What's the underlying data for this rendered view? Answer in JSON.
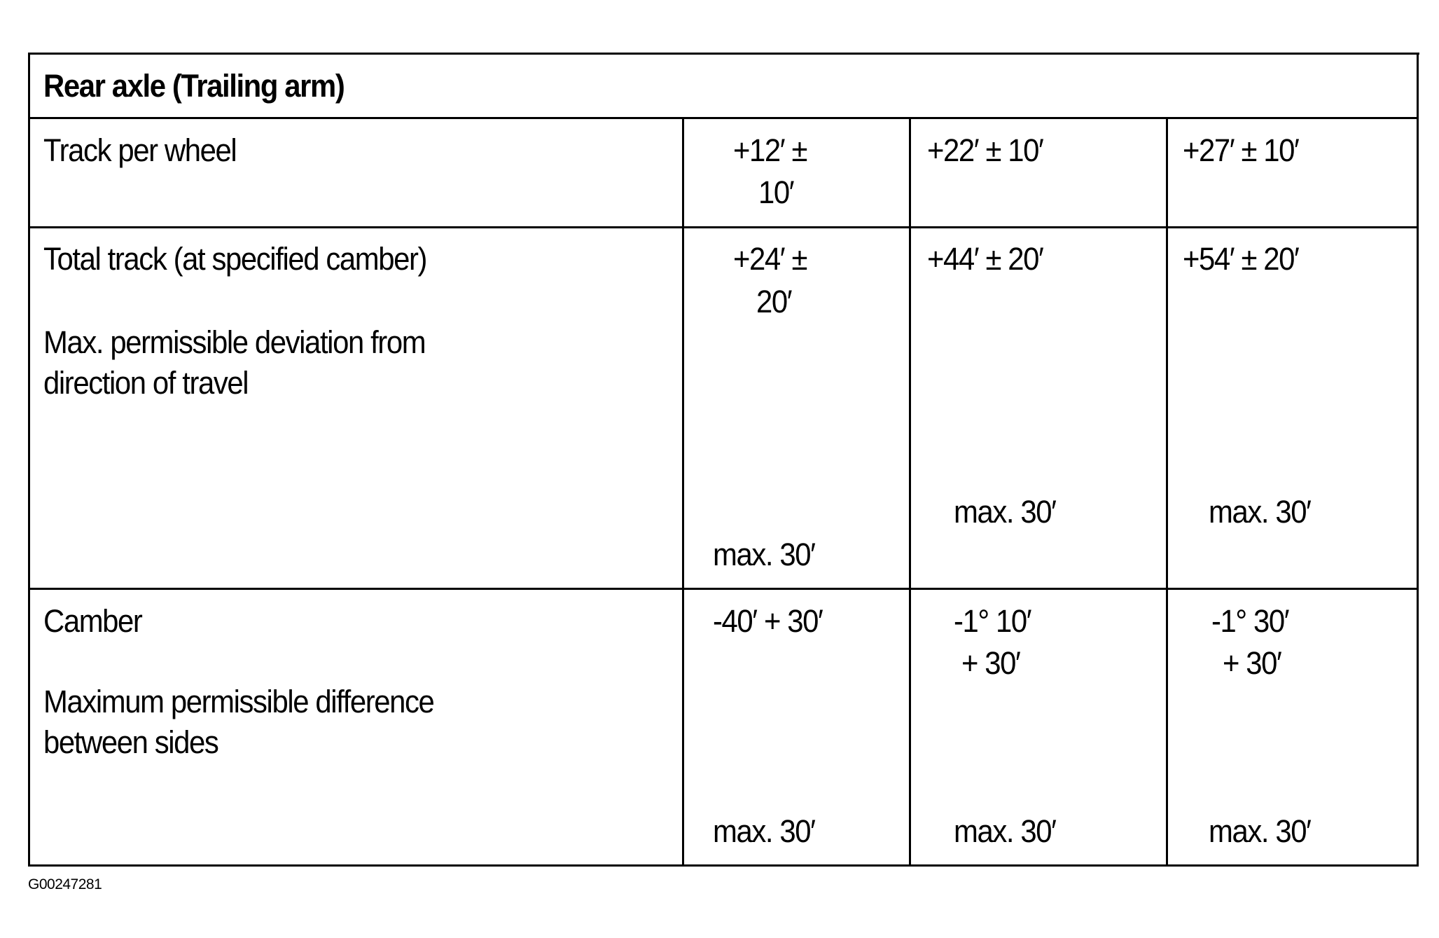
{
  "table": {
    "title": "Rear axle (Trailing arm)",
    "rows": [
      {
        "labels": [
          "Track per wheel"
        ],
        "values": [
          [
            "+12′  ±",
            "10′"
          ],
          [
            "+22′  ±  10′"
          ],
          [
            "+27′  ±  10′"
          ]
        ]
      },
      {
        "labels": [
          "Total track (at specified camber)",
          "Max. permissible deviation from",
          "direction of travel"
        ],
        "values": [
          [
            "+24′  ±",
            "20′"
          ],
          [
            "+44′  ±  20′"
          ],
          [
            "+54′  ±  20′"
          ]
        ],
        "max_values": [
          "max. 30′",
          "max. 30′",
          "max. 30′"
        ]
      },
      {
        "labels": [
          "Camber",
          "Maximum permissible difference",
          "between sides"
        ],
        "values": [
          [
            "-40′  + 30′"
          ],
          [
            "-1°  10′",
            "+ 30′"
          ],
          [
            "-1° 30′",
            "+ 30′"
          ]
        ],
        "max_values": [
          "max. 30′",
          "max. 30′",
          "max. 30′"
        ]
      }
    ]
  },
  "figure_id": "G00247281"
}
